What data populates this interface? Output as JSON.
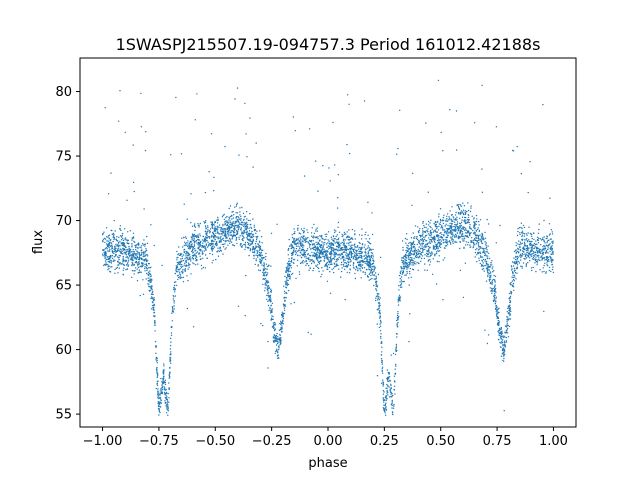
{
  "chart_data": {
    "type": "scatter",
    "title": "1SWASPJ215507.19-094757.3 Period 161012.42188s",
    "xlabel": "phase",
    "ylabel": "flux",
    "xlim": [
      -1.1,
      1.1
    ],
    "ylim": [
      54,
      82.6
    ],
    "xticks": [
      -1.0,
      -0.75,
      -0.5,
      -0.25,
      0.0,
      0.25,
      0.5,
      0.75,
      1.0
    ],
    "xtick_labels": [
      "−1.00",
      "−0.75",
      "−0.50",
      "−0.25",
      "0.00",
      "0.25",
      "0.50",
      "0.75",
      "1.00"
    ],
    "yticks": [
      55,
      60,
      65,
      70,
      75,
      80
    ],
    "ytick_labels": [
      "55",
      "60",
      "65",
      "70",
      "75",
      "80"
    ],
    "grid": false,
    "marker_color": "#1f77b4",
    "series": [
      {
        "phase": [
          -1.0,
          -0.95,
          -0.9,
          -0.85,
          -0.8,
          -0.77,
          -0.75,
          -0.73,
          -0.71,
          -0.69,
          -0.67,
          -0.6,
          -0.5,
          -0.45,
          -0.4,
          -0.35,
          -0.3,
          -0.26,
          -0.24,
          -0.22,
          -0.2,
          -0.18,
          -0.15,
          -0.1,
          -0.05,
          0.0,
          0.05,
          0.1,
          0.15,
          0.2,
          0.23,
          0.25,
          0.27,
          0.29,
          0.31,
          0.33,
          0.4,
          0.5,
          0.55,
          0.6,
          0.65,
          0.7,
          0.74,
          0.76,
          0.78,
          0.8,
          0.82,
          0.85,
          0.9,
          0.95,
          1.0
        ],
        "flux": [
          67.5,
          67.7,
          67.6,
          67.3,
          66.8,
          63.0,
          55.0,
          58.0,
          55.0,
          63.0,
          66.5,
          68.0,
          68.7,
          69.3,
          69.6,
          69.0,
          67.2,
          64.5,
          61.5,
          60.0,
          62.5,
          66.0,
          68.0,
          67.9,
          67.6,
          67.5,
          67.7,
          67.6,
          67.3,
          66.8,
          63.0,
          55.0,
          58.0,
          55.0,
          63.0,
          66.5,
          68.0,
          68.7,
          69.3,
          69.6,
          69.0,
          67.2,
          64.5,
          61.5,
          60.0,
          62.5,
          66.0,
          68.0,
          67.9,
          67.6,
          67.5
        ]
      }
    ]
  }
}
